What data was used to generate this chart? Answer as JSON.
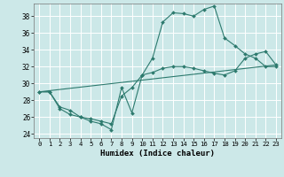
{
  "xlabel": "Humidex (Indice chaleur)",
  "xlim": [
    -0.5,
    23.5
  ],
  "ylim": [
    23.5,
    39.5
  ],
  "xticks": [
    0,
    1,
    2,
    3,
    4,
    5,
    6,
    7,
    8,
    9,
    10,
    11,
    12,
    13,
    14,
    15,
    16,
    17,
    18,
    19,
    20,
    21,
    22,
    23
  ],
  "yticks": [
    24,
    26,
    28,
    30,
    32,
    34,
    36,
    38
  ],
  "bg_color": "#cce8e8",
  "grid_color": "#ffffff",
  "line_color": "#2d7a6e",
  "line1_x": [
    0,
    1,
    2,
    3,
    4,
    5,
    6,
    7,
    8,
    9,
    10,
    11,
    12,
    13,
    14,
    15,
    16,
    17,
    18,
    19,
    20,
    21,
    22,
    23
  ],
  "line1_y": [
    29,
    29,
    27,
    26.3,
    26,
    25.5,
    25.2,
    24.5,
    29.5,
    26.5,
    31,
    33,
    37.3,
    38.4,
    38.3,
    38,
    38.8,
    39.2,
    35.4,
    34.5,
    33.5,
    33,
    32,
    32
  ],
  "line2_x": [
    0,
    1,
    2,
    3,
    4,
    5,
    6,
    7,
    8,
    9,
    10,
    11,
    12,
    13,
    14,
    15,
    16,
    17,
    18,
    19,
    20,
    21,
    22,
    23
  ],
  "line2_y": [
    29,
    29,
    27.2,
    26.8,
    26,
    25.8,
    25.5,
    25.2,
    28.5,
    29.5,
    31,
    31.3,
    31.8,
    32,
    32,
    31.8,
    31.5,
    31.2,
    31,
    31.5,
    33,
    33.5,
    33.8,
    32.2
  ],
  "line3_x": [
    0,
    23
  ],
  "line3_y": [
    29,
    32.2
  ]
}
